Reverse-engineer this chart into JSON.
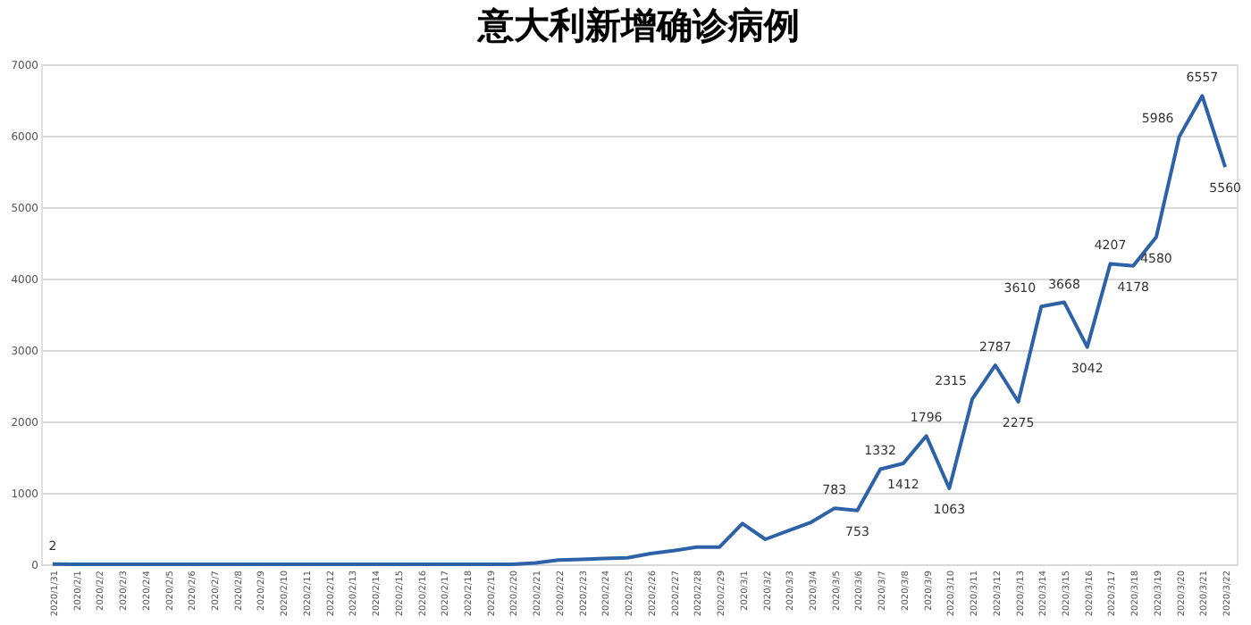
{
  "chart_data": {
    "type": "line",
    "title": "意大利新增确诊病例",
    "categories": [
      "2020/1/31",
      "2020/2/1",
      "2020/2/2",
      "2020/2/3",
      "2020/2/4",
      "2020/2/5",
      "2020/2/6",
      "2020/2/7",
      "2020/2/8",
      "2020/2/9",
      "2020/2/10",
      "2020/2/11",
      "2020/2/12",
      "2020/2/13",
      "2020/2/14",
      "2020/2/15",
      "2020/2/16",
      "2020/2/17",
      "2020/2/18",
      "2020/2/19",
      "2020/2/20",
      "2020/2/21",
      "2020/2/22",
      "2020/2/23",
      "2020/2/24",
      "2020/2/25",
      "2020/2/26",
      "2020/2/27",
      "2020/2/28",
      "2020/2/29",
      "2020/3/1",
      "2020/3/2",
      "2020/3/3",
      "2020/3/4",
      "2020/3/5",
      "2020/3/6",
      "2020/3/7",
      "2020/3/8",
      "2020/3/9",
      "2020/3/10",
      "2020/3/11",
      "2020/3/12",
      "2020/3/13",
      "2020/3/14",
      "2020/3/15",
      "2020/3/16",
      "2020/3/17",
      "2020/3/18",
      "2020/3/19",
      "2020/3/20",
      "2020/3/21",
      "2020/3/22"
    ],
    "series": [
      {
        "color": "#2e62a8",
        "values": [
          2,
          0,
          0,
          0,
          0,
          0,
          0,
          0,
          0,
          0,
          0,
          0,
          0,
          0,
          0,
          0,
          0,
          0,
          0,
          0,
          0,
          20,
          60,
          70,
          80,
          90,
          150,
          190,
          240,
          240,
          570,
          350,
          470,
          590,
          783,
          753,
          1332,
          1412,
          1796,
          1063,
          2315,
          2787,
          2275,
          3610,
          3668,
          3042,
          4207,
          4178,
          4580,
          5986,
          6557,
          5560
        ],
        "value_labels": [
          "2",
          null,
          null,
          null,
          null,
          null,
          null,
          null,
          null,
          null,
          null,
          null,
          null,
          null,
          null,
          null,
          null,
          null,
          null,
          null,
          null,
          null,
          null,
          null,
          null,
          null,
          null,
          null,
          null,
          null,
          null,
          null,
          null,
          null,
          "783",
          "753",
          "1332",
          "1412",
          "1796",
          "1063",
          "2315",
          "2787",
          "2275",
          "3610",
          "3668",
          "3042",
          "4207",
          "4178",
          "4580",
          "5986",
          "6557",
          "5560"
        ]
      }
    ],
    "ylim": [
      0,
      7000
    ],
    "yticks": [
      0,
      1000,
      2000,
      3000,
      4000,
      5000,
      6000,
      7000
    ],
    "grid": "y",
    "marker": "none",
    "line_style": "solid"
  }
}
